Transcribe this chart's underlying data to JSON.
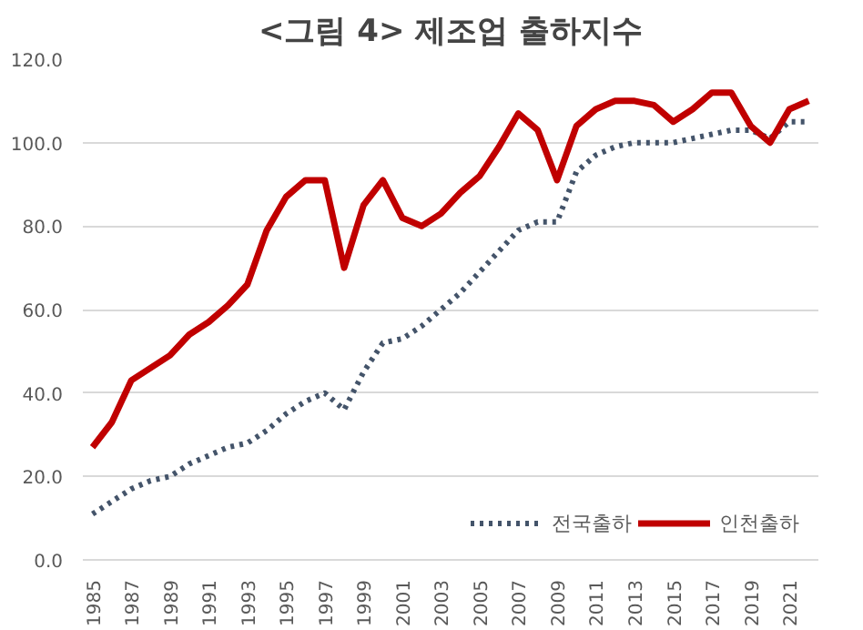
{
  "chart_data": {
    "type": "line",
    "title": "<그림 4> 제조업 출하지수",
    "x": [
      1985,
      1986,
      1987,
      1988,
      1989,
      1990,
      1991,
      1992,
      1993,
      1994,
      1995,
      1996,
      1997,
      1998,
      1999,
      2000,
      2001,
      2002,
      2003,
      2004,
      2005,
      2006,
      2007,
      2008,
      2009,
      2010,
      2011,
      2012,
      2013,
      2014,
      2015,
      2016,
      2017,
      2018,
      2019,
      2020,
      2021,
      2022
    ],
    "series": [
      {
        "name": "전국출하",
        "color": "#44546a",
        "line_style": "dotted",
        "values": [
          11,
          14,
          17,
          19,
          20,
          23,
          25,
          27,
          28,
          31,
          35,
          38,
          40,
          36,
          45,
          52,
          53,
          56,
          60,
          64,
          69,
          74,
          79,
          81,
          81,
          93,
          97,
          99,
          100,
          100,
          100,
          101,
          102,
          103,
          103,
          101,
          105,
          105
        ]
      },
      {
        "name": "인천출하",
        "color": "#c00000",
        "line_style": "solid",
        "values": [
          27,
          33,
          43,
          46,
          49,
          54,
          57,
          61,
          66,
          79,
          87,
          91,
          91,
          70,
          85,
          91,
          82,
          80,
          83,
          88,
          92,
          99,
          107,
          103,
          91,
          104,
          108,
          110,
          110,
          109,
          105,
          108,
          112,
          112,
          104,
          100,
          108,
          110
        ]
      }
    ],
    "xlim": [
      1984.5,
      2022.5
    ],
    "xticks": [
      1985,
      1987,
      1989,
      1991,
      1993,
      1995,
      1997,
      1999,
      2001,
      2003,
      2005,
      2007,
      2009,
      2011,
      2013,
      2015,
      2017,
      2019,
      2021
    ],
    "ylim": [
      0,
      120
    ],
    "yticks": [
      {
        "value": 0,
        "label": "0.0"
      },
      {
        "value": 20,
        "label": "20.0"
      },
      {
        "value": 40,
        "label": "40.0"
      },
      {
        "value": 60,
        "label": "60.0"
      },
      {
        "value": 80,
        "label": "80.0"
      },
      {
        "value": 100,
        "label": "100.0"
      },
      {
        "value": 120,
        "label": "120.0"
      }
    ],
    "grid": "y",
    "legend": "bottom right"
  }
}
